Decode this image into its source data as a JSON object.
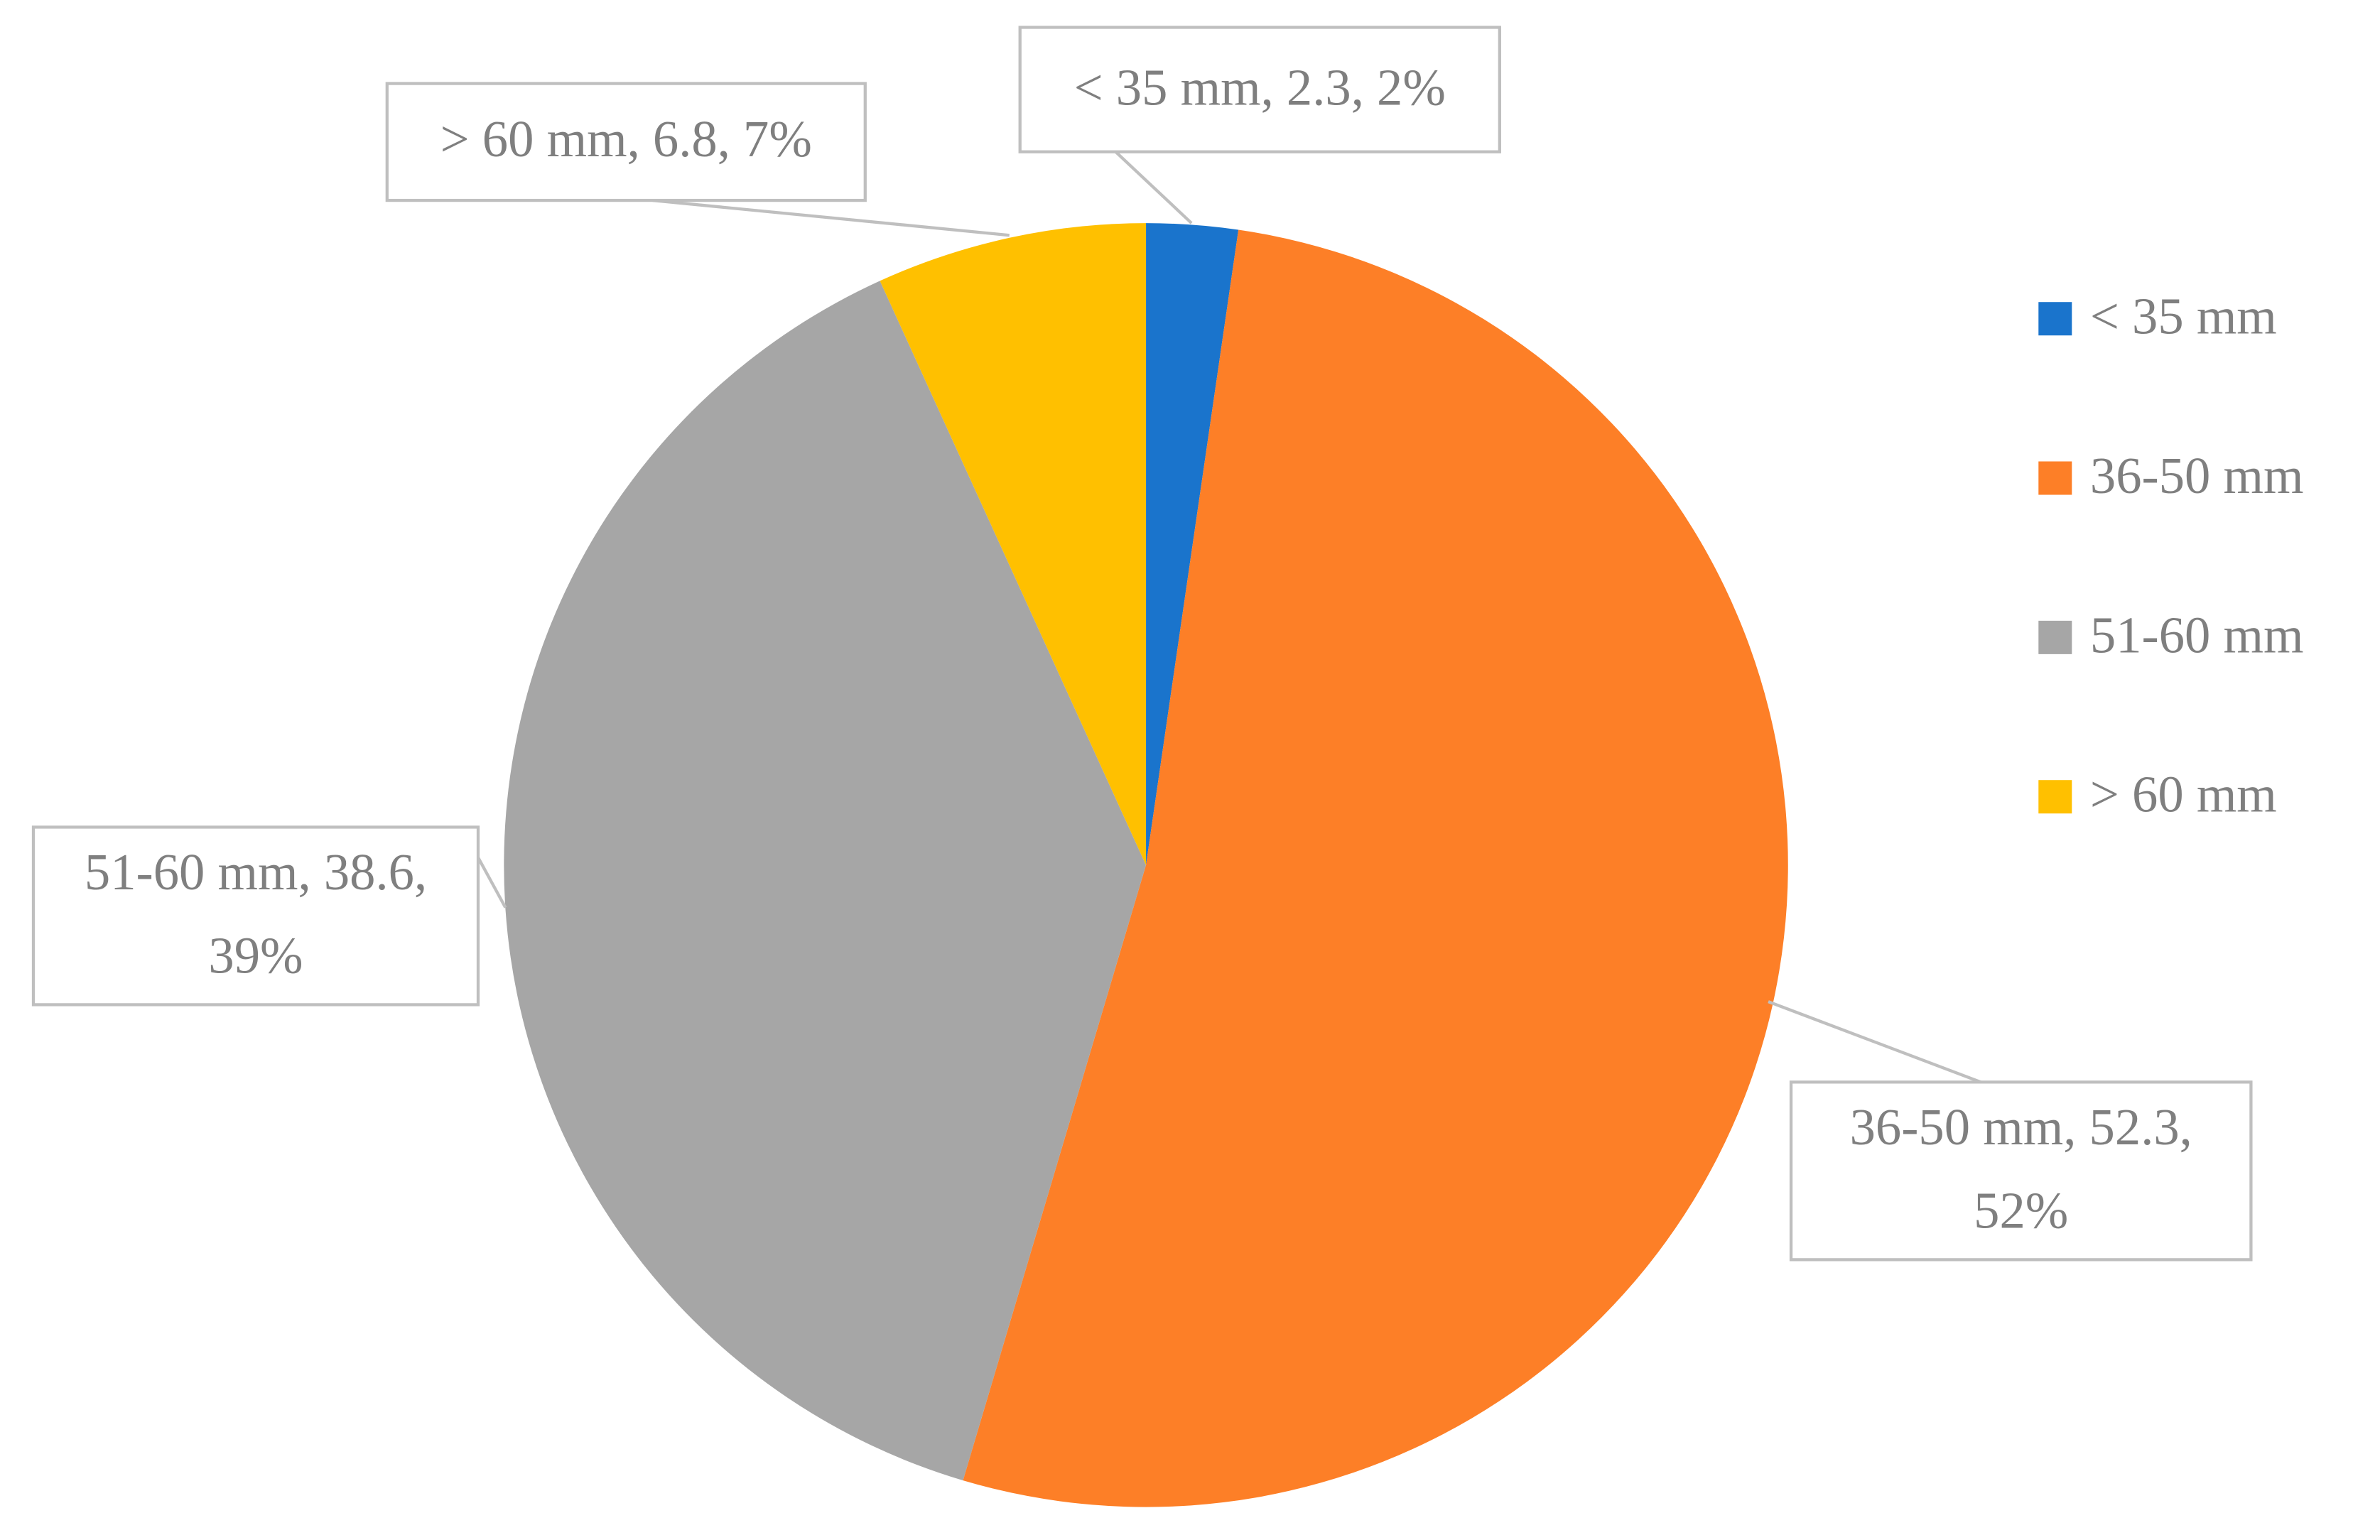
{
  "chart_data": {
    "type": "pie",
    "categories": [
      "< 35 mm",
      "36-50 mm",
      "51-60 mm",
      "> 60 mm"
    ],
    "values": [
      2.3,
      52.3,
      38.6,
      6.8
    ],
    "value_labels": [
      "< 35 mm, 2.3, 2%",
      "36-50 mm, 52.3, 52%",
      "51-60 mm, 38.6, 39%",
      "> 60 mm, 6.8, 7%"
    ],
    "colors": [
      "#1a74cc",
      "#fd7f27",
      "#a6a6a6",
      "#ffc000"
    ],
    "legend": "right"
  }
}
